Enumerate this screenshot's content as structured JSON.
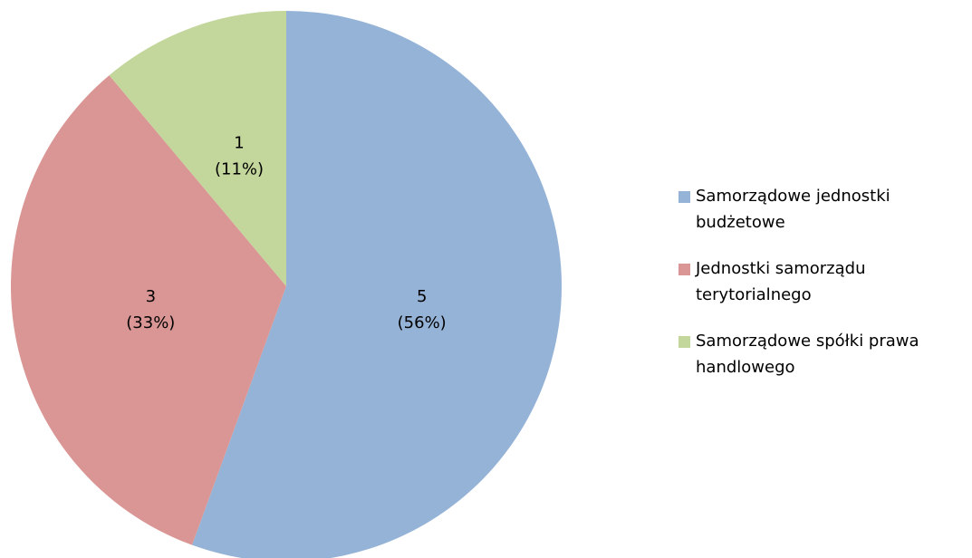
{
  "chart_data": {
    "type": "pie",
    "categories": [
      "Samorządowe jednostki budżetowe",
      "Jednostki samorządu terytorialnego",
      "Samorządowe spółki prawa handlowego"
    ],
    "values": [
      5,
      3,
      1
    ],
    "value_labels": [
      [
        "5",
        "(56%)"
      ],
      [
        "3",
        "(33%)"
      ],
      [
        "1",
        "(11%)"
      ]
    ],
    "colors": [
      "#95b3d7",
      "#d99694",
      "#c3d69b"
    ],
    "legend": "right"
  }
}
